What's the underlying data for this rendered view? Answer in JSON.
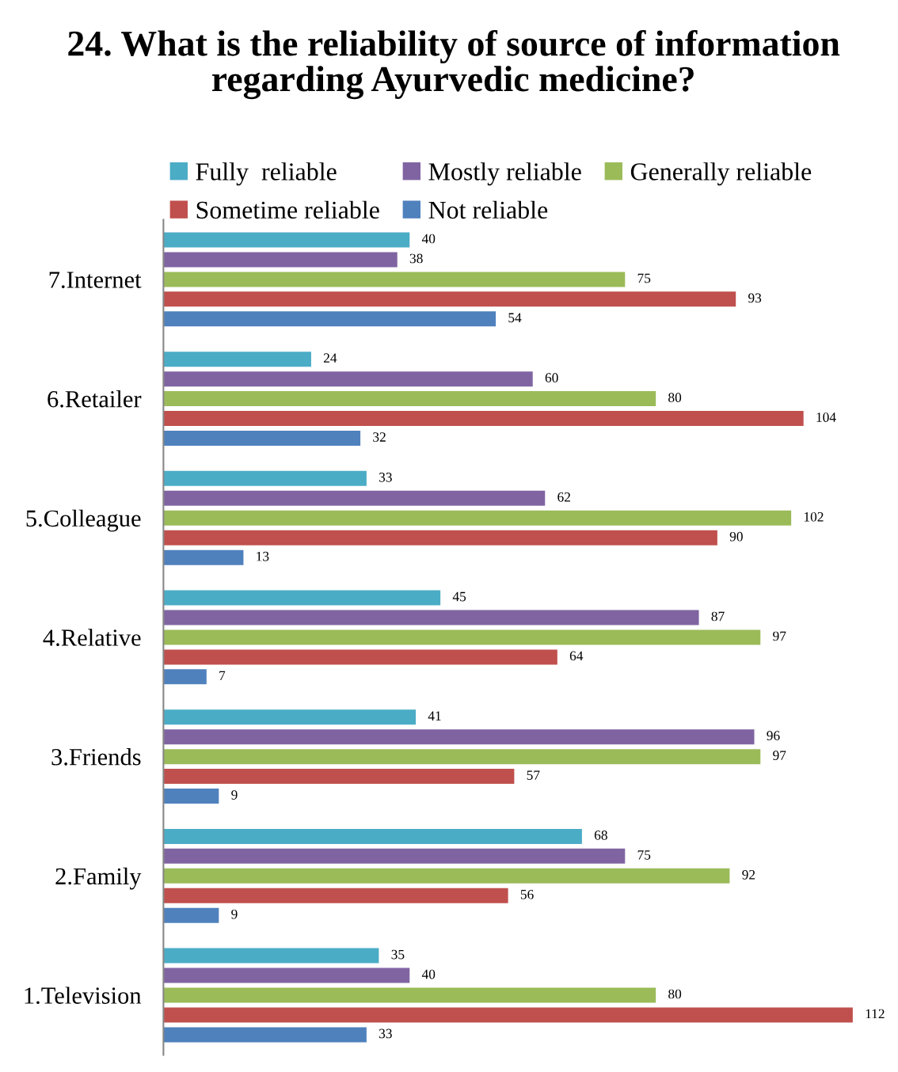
{
  "chart_data": {
    "type": "bar",
    "orientation": "horizontal",
    "title": "24. What is the reliability of source of information regarding Ayurvedic medicine?",
    "categories": [
      "7.Internet",
      "6.Retailer",
      "5.Colleague",
      "4.Relative",
      "3.Friends",
      "2.Family",
      "1.Television"
    ],
    "series": [
      {
        "name": "Fully  reliable",
        "color": "#4bacc6",
        "values": [
          40,
          24,
          33,
          45,
          41,
          68,
          35
        ]
      },
      {
        "name": "Mostly reliable",
        "color": "#8064a2",
        "values": [
          38,
          60,
          62,
          87,
          96,
          75,
          40
        ]
      },
      {
        "name": "Generally reliable",
        "color": "#9bbb59",
        "values": [
          75,
          80,
          102,
          97,
          97,
          92,
          80
        ]
      },
      {
        "name": "Sometime reliable",
        "color": "#c0504d",
        "values": [
          93,
          104,
          90,
          64,
          57,
          56,
          112
        ]
      },
      {
        "name": "Not reliable",
        "color": "#4f81bd",
        "values": [
          54,
          32,
          13,
          7,
          9,
          9,
          33
        ]
      }
    ],
    "data_labels": true,
    "legend": "top",
    "tick_labels": "y",
    "grid": false
  }
}
